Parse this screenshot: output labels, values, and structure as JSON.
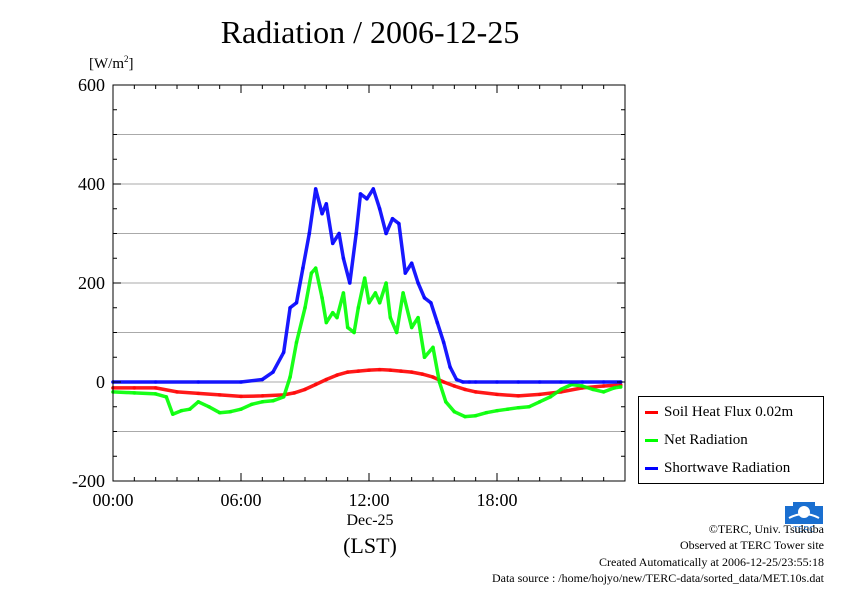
{
  "chart_data": {
    "type": "line",
    "title": "Radiation / 2006-12-25",
    "ylabel": "[W/m",
    "ylabel_sup": "2",
    "ylabel_close": "]",
    "xlabel": "(LST)",
    "x_date_label": "Dec-25",
    "xlim": [
      0,
      24
    ],
    "ylim": [
      -200,
      600
    ],
    "xticks": [
      0,
      6,
      12,
      18
    ],
    "xtick_labels": [
      "00:00",
      "06:00",
      "12:00",
      "18:00"
    ],
    "yticks": [
      -200,
      0,
      200,
      400,
      600
    ],
    "ytick_labels": [
      "-200",
      "0",
      "200",
      "400",
      "600"
    ],
    "grid": true,
    "legend_position": "bottom-right outside",
    "series": [
      {
        "name": "Soil Heat Flux 0.02m",
        "color": "#ff0000",
        "x": [
          0,
          1,
          2,
          3,
          4,
          5,
          6,
          7,
          8,
          8.5,
          9,
          9.5,
          10,
          10.5,
          11,
          11.5,
          12,
          12.5,
          13,
          13.5,
          14,
          14.5,
          15,
          15.5,
          16,
          16.5,
          17,
          18,
          19,
          20,
          21,
          22,
          23,
          23.8
        ],
        "y": [
          -12,
          -12,
          -12,
          -20,
          -23,
          -26,
          -29,
          -28,
          -26,
          -22,
          -15,
          -5,
          5,
          14,
          20,
          22,
          24,
          25,
          24,
          22,
          20,
          16,
          10,
          0,
          -8,
          -15,
          -20,
          -25,
          -28,
          -25,
          -20,
          -12,
          -8,
          -6
        ]
      },
      {
        "name": "Net Radiation",
        "color": "#00ff00",
        "x": [
          0,
          1,
          2,
          2.5,
          2.8,
          3.2,
          3.6,
          4,
          4.5,
          5,
          5.5,
          6,
          6.5,
          7,
          7.5,
          8,
          8.3,
          8.6,
          9,
          9.3,
          9.5,
          9.8,
          10,
          10.3,
          10.5,
          10.8,
          11,
          11.3,
          11.5,
          11.8,
          12,
          12.3,
          12.5,
          12.8,
          13,
          13.3,
          13.6,
          14,
          14.3,
          14.6,
          15,
          15.3,
          15.6,
          16,
          16.5,
          17,
          17.5,
          18,
          18.5,
          19,
          19.5,
          20,
          20.5,
          21,
          21.5,
          22,
          22.5,
          23,
          23.5,
          23.8
        ],
        "y": [
          -20,
          -22,
          -24,
          -30,
          -65,
          -58,
          -55,
          -40,
          -50,
          -62,
          -60,
          -55,
          -45,
          -40,
          -38,
          -30,
          10,
          80,
          150,
          220,
          230,
          170,
          120,
          140,
          130,
          180,
          110,
          100,
          150,
          210,
          160,
          180,
          160,
          200,
          130,
          100,
          180,
          110,
          130,
          50,
          70,
          0,
          -40,
          -60,
          -70,
          -68,
          -62,
          -58,
          -55,
          -52,
          -50,
          -40,
          -30,
          -15,
          -5,
          -8,
          -15,
          -20,
          -12,
          -10
        ]
      },
      {
        "name": "Shortwave Radiation",
        "color": "#0000ff",
        "x": [
          0,
          2,
          4,
          6,
          7,
          7.5,
          8,
          8.3,
          8.6,
          8.9,
          9.2,
          9.5,
          9.8,
          10,
          10.3,
          10.6,
          10.8,
          11.1,
          11.4,
          11.6,
          11.9,
          12.2,
          12.5,
          12.8,
          13.1,
          13.4,
          13.7,
          14,
          14.3,
          14.6,
          14.9,
          15.2,
          15.5,
          15.8,
          16.1,
          16.4,
          16.7,
          17,
          18,
          19,
          20,
          21,
          22,
          23,
          23.8
        ],
        "y": [
          0,
          0,
          0,
          0,
          5,
          20,
          60,
          150,
          160,
          230,
          300,
          390,
          340,
          360,
          280,
          300,
          250,
          200,
          300,
          380,
          370,
          390,
          350,
          300,
          330,
          320,
          220,
          240,
          200,
          170,
          160,
          120,
          80,
          30,
          5,
          0,
          0,
          0,
          0,
          0,
          0,
          0,
          0,
          0,
          0
        ]
      }
    ]
  },
  "credits": {
    "copyright": "©TERC, Univ. Tsukuba",
    "observed": "Observed at TERC Tower site",
    "created": "Created Automatically at 2006-12-25/23:55:18",
    "source": "Data source : /home/hojyo/new/TERC-data/sorted_data/MET.10s.dat",
    "logo_text": "TERC"
  }
}
